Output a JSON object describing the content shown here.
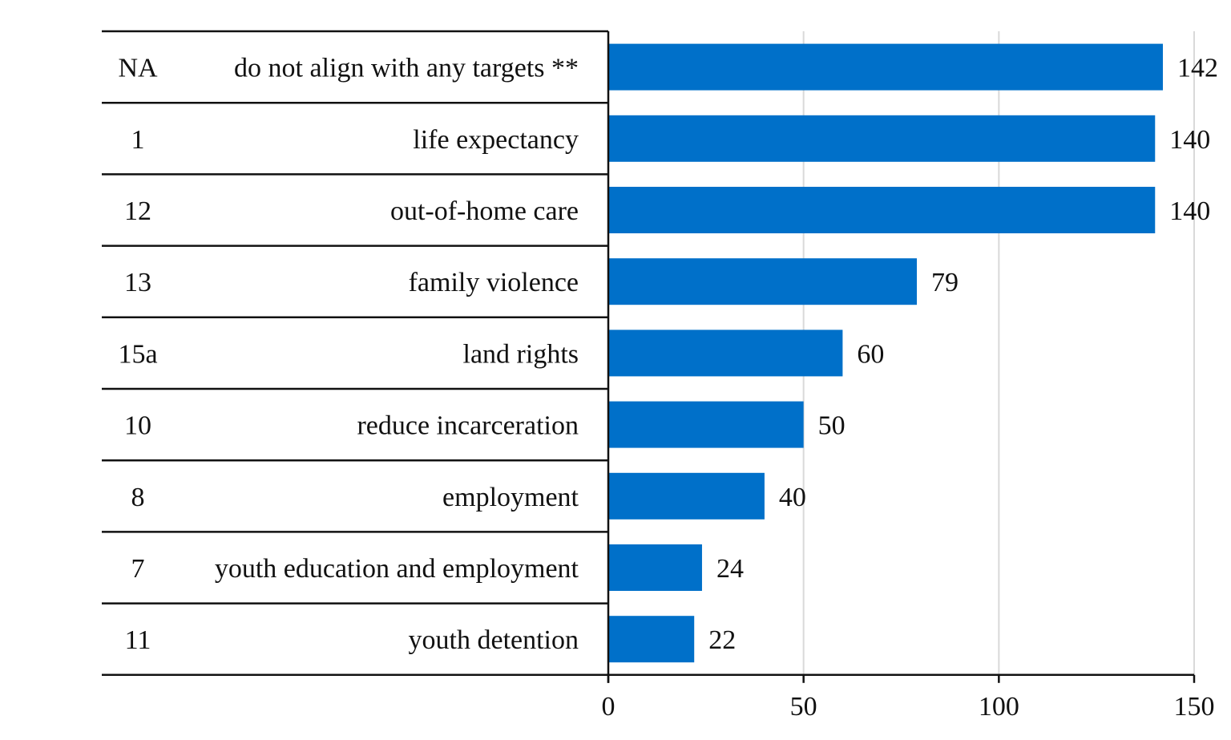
{
  "chart_data": {
    "type": "bar",
    "orientation": "horizontal",
    "rows": [
      {
        "code": "NA",
        "label": "do not align with any targets **",
        "value": 142
      },
      {
        "code": "1",
        "label": "life expectancy",
        "value": 140
      },
      {
        "code": "12",
        "label": "out-of-home care",
        "value": 140
      },
      {
        "code": "13",
        "label": "family violence",
        "value": 79
      },
      {
        "code": "15a",
        "label": "land rights",
        "value": 60
      },
      {
        "code": "10",
        "label": "reduce incarceration",
        "value": 50
      },
      {
        "code": "8",
        "label": "employment",
        "value": 40
      },
      {
        "code": "7",
        "label": "youth education and employment",
        "value": 24
      },
      {
        "code": "11",
        "label": "youth detention",
        "value": 22
      }
    ],
    "xlim": [
      0,
      150
    ],
    "xticks": [
      0,
      50,
      100,
      150
    ],
    "grid": true,
    "bar_color": "#0070c9",
    "data_labels": true
  }
}
